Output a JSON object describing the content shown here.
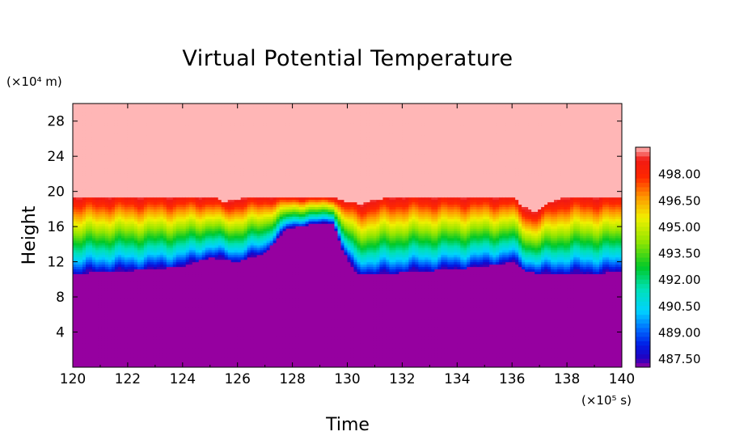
{
  "chart_data": {
    "type": "heatmap",
    "title": "Virtual Potential Temperature",
    "xlabel": "Time",
    "ylabel": "Height",
    "x_multiplier": "(×10⁵ s)",
    "y_multiplier": "(×10⁴ m)",
    "xlim": [
      120,
      140
    ],
    "ylim": [
      0,
      30
    ],
    "xticks": [
      120,
      122,
      124,
      126,
      128,
      130,
      132,
      134,
      136,
      138,
      140
    ],
    "yticks": [
      4,
      8,
      12,
      16,
      20,
      24,
      28
    ],
    "colorbar": {
      "range": [
        487.0,
        499.5
      ],
      "ticks": [
        "498.00",
        "496.50",
        "495.00",
        "493.50",
        "492.00",
        "490.50",
        "489.00",
        "487.50"
      ],
      "tick_values": [
        498.0,
        496.5,
        495.0,
        493.5,
        492.0,
        490.5,
        489.0,
        487.5
      ]
    },
    "field": {
      "lower_value": 487.0,
      "upper_value": 499.5,
      "interface_top_height": [
        [
          120.0,
          19.4
        ],
        [
          120.5,
          19.4
        ],
        [
          121.0,
          19.5
        ],
        [
          122.0,
          19.5
        ],
        [
          123.0,
          19.5
        ],
        [
          124.0,
          19.5
        ],
        [
          125.2,
          19.5
        ],
        [
          125.5,
          18.8
        ],
        [
          126.0,
          19.2
        ],
        [
          127.0,
          19.5
        ],
        [
          128.0,
          19.5
        ],
        [
          129.5,
          19.5
        ],
        [
          129.8,
          19.0
        ],
        [
          130.5,
          18.6
        ],
        [
          131.0,
          19.1
        ],
        [
          132.0,
          19.5
        ],
        [
          133.0,
          19.5
        ],
        [
          134.0,
          19.5
        ],
        [
          135.0,
          19.5
        ],
        [
          136.0,
          19.5
        ],
        [
          136.3,
          18.6
        ],
        [
          136.8,
          17.6
        ],
        [
          137.5,
          19.0
        ],
        [
          138.0,
          19.4
        ],
        [
          140.0,
          19.5
        ]
      ],
      "mixed_layer_bottom_height": [
        [
          120.0,
          10.6
        ],
        [
          121.0,
          10.9
        ],
        [
          122.0,
          11.0
        ],
        [
          123.0,
          11.2
        ],
        [
          124.0,
          11.5
        ],
        [
          125.0,
          12.5
        ],
        [
          125.5,
          12.3
        ],
        [
          126.0,
          12.0
        ],
        [
          127.0,
          13.0
        ],
        [
          127.8,
          15.8
        ],
        [
          128.5,
          16.2
        ],
        [
          129.5,
          16.5
        ],
        [
          129.8,
          13.5
        ],
        [
          130.3,
          10.8
        ],
        [
          131.0,
          10.5
        ],
        [
          132.0,
          10.8
        ],
        [
          133.0,
          11.0
        ],
        [
          134.0,
          11.2
        ],
        [
          135.0,
          11.5
        ],
        [
          136.0,
          12.0
        ],
        [
          136.5,
          11.0
        ],
        [
          137.0,
          10.6
        ],
        [
          138.0,
          10.7
        ],
        [
          140.0,
          10.8
        ]
      ]
    }
  }
}
